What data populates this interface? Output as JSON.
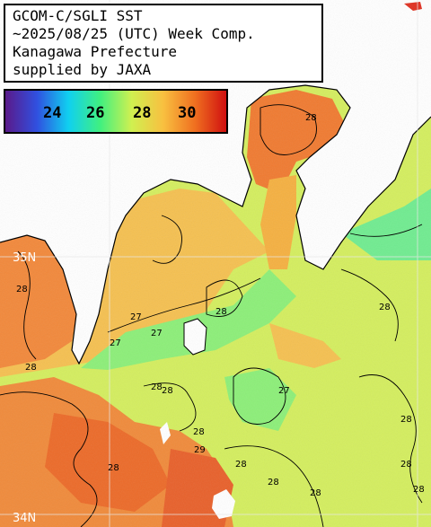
{
  "header": {
    "line1": "GCOM-C/SGLI SST",
    "line2": "~2025/08/25 (UTC) Week Comp.",
    "line3": "Kanagawa Prefecture",
    "line4": "supplied by JAXA"
  },
  "colorbar": {
    "tick_labels": [
      "24",
      "26",
      "28",
      "30"
    ],
    "colors": [
      "#5a1a8a",
      "#3050e0",
      "#10d0f0",
      "#40f080",
      "#d0f050",
      "#f8c040",
      "#f07020",
      "#d01010"
    ]
  },
  "map": {
    "lat_labels": [
      "35N",
      "34N"
    ],
    "contour_labels": [
      "28",
      "28",
      "28",
      "28",
      "27",
      "27",
      "27",
      "28",
      "28",
      "28",
      "29",
      "28",
      "28",
      "28",
      "28",
      "28",
      "27",
      "28",
      "28",
      "28"
    ],
    "colors": {
      "land": "#ffffff",
      "sea_warm": "#f07a28",
      "sea_mid": "#f5b44a",
      "sea_cool": "#c8ec60",
      "sea_cold": "#6ef08a"
    }
  }
}
